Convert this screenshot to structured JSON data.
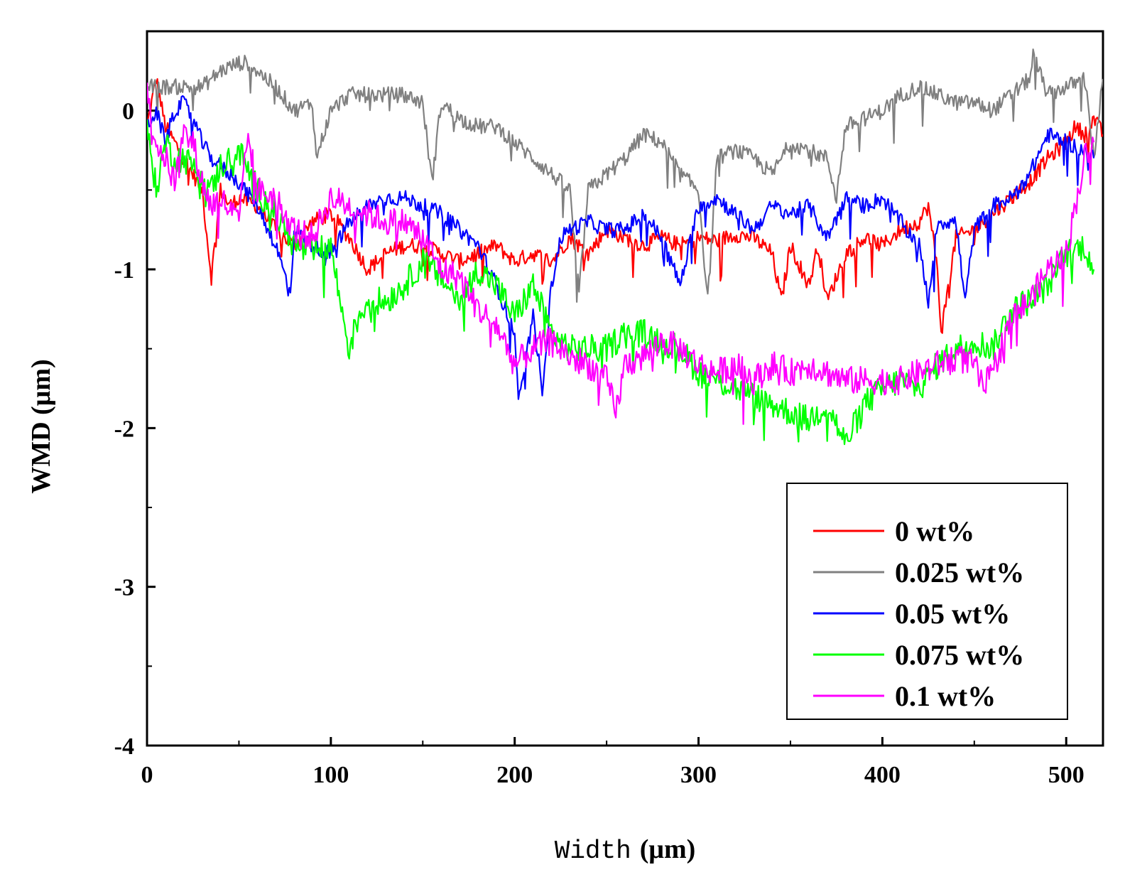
{
  "chart_data": {
    "type": "line",
    "title": "",
    "xlabel_main": "Width",
    "xlabel_unit": "(μm)",
    "ylabel": "WMD (μm)",
    "xlim": [
      0,
      520
    ],
    "ylim": [
      -4,
      0.5
    ],
    "x_ticks": [
      0,
      100,
      200,
      300,
      400,
      500
    ],
    "y_ticks": [
      0,
      -1,
      -2,
      -3,
      -4
    ],
    "x_tick_labels": [
      "0",
      "100",
      "200",
      "300",
      "400",
      "500"
    ],
    "y_tick_labels": [
      "0",
      "-1",
      "-2",
      "-3",
      "-4"
    ],
    "legend_position": "bottom-right",
    "series": [
      {
        "name": "0 wt%",
        "color": "#ff0000",
        "x": [
          0,
          5,
          10,
          15,
          20,
          25,
          30,
          35,
          40,
          45,
          50,
          60,
          70,
          80,
          90,
          100,
          110,
          120,
          130,
          140,
          150,
          160,
          170,
          180,
          190,
          200,
          210,
          220,
          230,
          240,
          250,
          260,
          270,
          280,
          290,
          300,
          310,
          320,
          330,
          340,
          345,
          350,
          360,
          365,
          370,
          380,
          390,
          400,
          410,
          420,
          425,
          430,
          432,
          440,
          450,
          460,
          470,
          480,
          490,
          500,
          505,
          510,
          515,
          520
        ],
        "y": [
          -0.1,
          0.2,
          -0.1,
          -0.2,
          -0.3,
          -0.4,
          -0.5,
          -1.05,
          -0.5,
          -0.6,
          -0.55,
          -0.6,
          -0.75,
          -0.85,
          -0.7,
          -0.65,
          -0.8,
          -1.0,
          -0.9,
          -0.85,
          -0.85,
          -0.9,
          -0.95,
          -0.9,
          -0.85,
          -0.95,
          -0.9,
          -0.95,
          -0.8,
          -0.9,
          -0.75,
          -0.8,
          -0.85,
          -0.8,
          -0.85,
          -0.8,
          -0.82,
          -0.78,
          -0.8,
          -0.9,
          -1.2,
          -0.85,
          -1.1,
          -0.85,
          -1.2,
          -0.9,
          -0.8,
          -0.85,
          -0.75,
          -0.7,
          -0.6,
          -1.0,
          -1.4,
          -0.8,
          -0.75,
          -0.65,
          -0.55,
          -0.45,
          -0.3,
          -0.2,
          -0.1,
          -0.15,
          -0.05,
          -0.15
        ]
      },
      {
        "name": "0.025 wt%",
        "color": "#808080",
        "x": [
          0,
          10,
          20,
          30,
          40,
          50,
          55,
          60,
          70,
          80,
          90,
          92,
          100,
          110,
          120,
          130,
          140,
          150,
          155,
          160,
          170,
          180,
          190,
          200,
          210,
          220,
          230,
          235,
          240,
          250,
          260,
          270,
          280,
          290,
          300,
          305,
          310,
          320,
          330,
          340,
          350,
          360,
          370,
          375,
          380,
          390,
          400,
          410,
          420,
          430,
          440,
          450,
          460,
          470,
          480,
          482,
          490,
          500,
          510,
          515,
          520
        ],
        "y": [
          0.15,
          0.15,
          0.15,
          0.15,
          0.25,
          0.3,
          0.3,
          0.25,
          0.15,
          0.0,
          0.05,
          -0.3,
          0.0,
          0.1,
          0.1,
          0.1,
          0.1,
          0.05,
          -0.45,
          0.05,
          -0.05,
          -0.1,
          -0.1,
          -0.2,
          -0.3,
          -0.4,
          -0.5,
          -1.15,
          -0.5,
          -0.4,
          -0.3,
          -0.15,
          -0.2,
          -0.4,
          -0.5,
          -1.2,
          -0.3,
          -0.25,
          -0.3,
          -0.4,
          -0.2,
          -0.25,
          -0.3,
          -0.55,
          -0.1,
          -0.05,
          0.0,
          0.1,
          0.15,
          0.1,
          0.05,
          0.05,
          0.0,
          0.1,
          0.2,
          0.35,
          0.1,
          0.15,
          0.2,
          -0.3,
          0.2
        ]
      },
      {
        "name": "0.05 wt%",
        "color": "#0000ff",
        "x": [
          0,
          5,
          10,
          15,
          20,
          25,
          30,
          35,
          40,
          50,
          60,
          70,
          78,
          80,
          90,
          100,
          110,
          120,
          130,
          140,
          150,
          160,
          170,
          180,
          190,
          200,
          202,
          210,
          215,
          220,
          225,
          230,
          240,
          250,
          260,
          270,
          280,
          290,
          300,
          310,
          320,
          330,
          340,
          350,
          360,
          370,
          380,
          390,
          400,
          410,
          420,
          425,
          430,
          440,
          445,
          450,
          460,
          470,
          480,
          490,
          500,
          510,
          515
        ],
        "y": [
          -0.1,
          0.0,
          -0.2,
          0.0,
          0.05,
          -0.05,
          -0.2,
          -0.3,
          -0.35,
          -0.45,
          -0.6,
          -0.85,
          -1.15,
          -0.75,
          -0.85,
          -0.9,
          -0.7,
          -0.6,
          -0.55,
          -0.55,
          -0.6,
          -0.65,
          -0.75,
          -0.85,
          -1.1,
          -1.4,
          -1.85,
          -1.3,
          -1.75,
          -1.1,
          -0.8,
          -0.75,
          -0.7,
          -0.75,
          -0.75,
          -0.65,
          -0.8,
          -1.1,
          -0.6,
          -0.55,
          -0.65,
          -0.75,
          -0.6,
          -0.65,
          -0.6,
          -0.8,
          -0.55,
          -0.6,
          -0.55,
          -0.7,
          -0.85,
          -1.2,
          -0.7,
          -0.7,
          -1.2,
          -0.75,
          -0.6,
          -0.55,
          -0.4,
          -0.15,
          -0.2,
          -0.25,
          -0.3
        ]
      },
      {
        "name": "0.075 wt%",
        "color": "#00ff00",
        "x": [
          0,
          5,
          10,
          15,
          20,
          25,
          30,
          35,
          40,
          50,
          60,
          70,
          80,
          90,
          100,
          105,
          110,
          115,
          120,
          130,
          140,
          150,
          160,
          170,
          180,
          190,
          200,
          210,
          220,
          230,
          240,
          250,
          260,
          270,
          280,
          290,
          300,
          310,
          320,
          330,
          340,
          350,
          360,
          370,
          380,
          390,
          400,
          410,
          420,
          430,
          440,
          450,
          460,
          470,
          480,
          490,
          500,
          510,
          515
        ],
        "y": [
          -0.1,
          -0.5,
          -0.2,
          -0.3,
          -0.3,
          -0.35,
          -0.4,
          -0.5,
          -0.35,
          -0.25,
          -0.5,
          -0.65,
          -0.85,
          -0.9,
          -0.85,
          -1.2,
          -1.5,
          -1.3,
          -1.2,
          -1.2,
          -1.1,
          -0.95,
          -1.05,
          -1.2,
          -1.0,
          -1.1,
          -1.3,
          -1.1,
          -1.4,
          -1.5,
          -1.5,
          -1.5,
          -1.4,
          -1.4,
          -1.45,
          -1.5,
          -1.65,
          -1.7,
          -1.75,
          -1.8,
          -1.85,
          -1.9,
          -1.95,
          -1.85,
          -2.1,
          -1.85,
          -1.75,
          -1.7,
          -1.75,
          -1.6,
          -1.5,
          -1.45,
          -1.5,
          -1.25,
          -1.2,
          -1.1,
          -0.9,
          -0.85,
          -1.0
        ]
      },
      {
        "name": "0.1 wt%",
        "color": "#ff00ff",
        "x": [
          0,
          5,
          10,
          15,
          20,
          25,
          30,
          35,
          40,
          50,
          55,
          60,
          70,
          80,
          90,
          100,
          110,
          120,
          130,
          140,
          150,
          160,
          170,
          180,
          190,
          200,
          210,
          220,
          230,
          240,
          250,
          255,
          260,
          270,
          280,
          290,
          300,
          310,
          320,
          330,
          340,
          350,
          360,
          370,
          380,
          390,
          400,
          410,
          420,
          430,
          440,
          450,
          455,
          460,
          470,
          480,
          490,
          500,
          510,
          515
        ],
        "y": [
          0.1,
          -0.2,
          -0.3,
          -0.45,
          -0.15,
          -0.2,
          -0.45,
          -0.6,
          -0.55,
          -0.7,
          -0.15,
          -0.5,
          -0.55,
          -0.75,
          -0.8,
          -0.55,
          -0.6,
          -0.65,
          -0.7,
          -0.7,
          -0.8,
          -1.0,
          -1.05,
          -1.25,
          -1.35,
          -1.6,
          -1.5,
          -1.45,
          -1.55,
          -1.6,
          -1.7,
          -1.9,
          -1.6,
          -1.55,
          -1.45,
          -1.5,
          -1.6,
          -1.65,
          -1.6,
          -1.7,
          -1.6,
          -1.65,
          -1.6,
          -1.65,
          -1.7,
          -1.7,
          -1.7,
          -1.7,
          -1.65,
          -1.6,
          -1.55,
          -1.6,
          -1.75,
          -1.65,
          -1.3,
          -1.2,
          -1.0,
          -0.9,
          -0.3,
          -0.2
        ]
      }
    ]
  }
}
